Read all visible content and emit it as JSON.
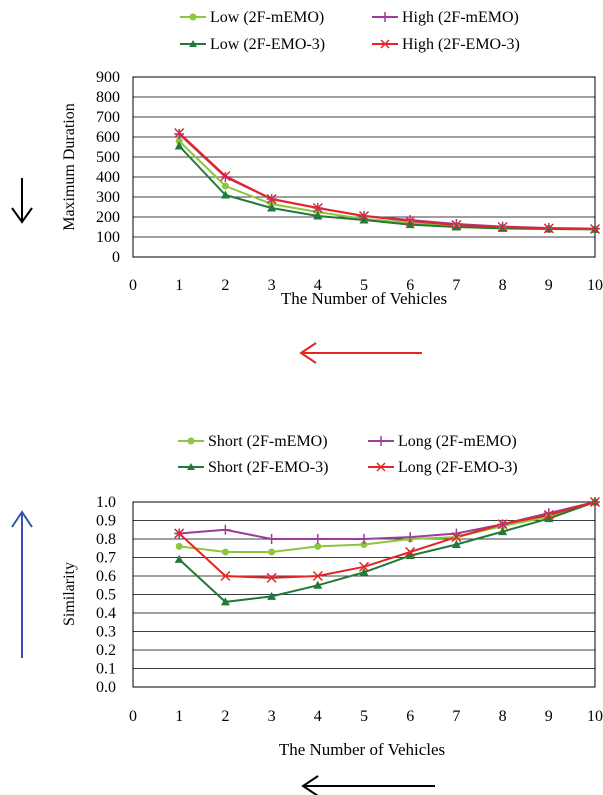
{
  "chart_data": [
    {
      "type": "line",
      "xlabel": "The Number of Vehicles",
      "ylabel": "Maximum Duration",
      "xlim": [
        0,
        10
      ],
      "ylim": [
        0,
        900
      ],
      "x_ticks": [
        0,
        1,
        2,
        3,
        4,
        5,
        6,
        7,
        8,
        9,
        10
      ],
      "y_ticks": [
        0,
        100,
        200,
        300,
        400,
        500,
        600,
        700,
        800,
        900
      ],
      "grid": "horizontal",
      "legend_position": "top",
      "arrows": [
        {
          "direction": "down",
          "color": "#000000"
        },
        {
          "direction": "left",
          "color": "#e52525"
        }
      ],
      "x": [
        1,
        2,
        3,
        4,
        5,
        6,
        7,
        8,
        9,
        10
      ],
      "series": [
        {
          "name": "Low (2F-mEMO)",
          "color": "#8cc63f",
          "marker": "circle",
          "values": [
            580,
            355,
            265,
            225,
            190,
            170,
            155,
            148,
            143,
            140
          ]
        },
        {
          "name": "High (2F-mEMO)",
          "color": "#9b3d9b",
          "marker": "plus",
          "values": [
            615,
            400,
            290,
            245,
            205,
            185,
            165,
            152,
            145,
            142
          ]
        },
        {
          "name": "Low (2F-EMO-3)",
          "color": "#217a3a",
          "marker": "triangle",
          "values": [
            555,
            310,
            245,
            205,
            185,
            162,
            150,
            143,
            140,
            138
          ]
        },
        {
          "name": "High (2F-EMO-3)",
          "color": "#e52525",
          "marker": "x",
          "values": [
            620,
            405,
            290,
            245,
            205,
            180,
            160,
            150,
            143,
            140
          ]
        }
      ]
    },
    {
      "type": "line",
      "xlabel": "The Number of Vehicles",
      "ylabel": "Similarity",
      "xlim": [
        0,
        10
      ],
      "ylim": [
        0,
        1
      ],
      "x_ticks": [
        0,
        1,
        2,
        3,
        4,
        5,
        6,
        7,
        8,
        9,
        10
      ],
      "y_ticks": [
        "0.0",
        "0.1",
        "0.2",
        "0.3",
        "0.4",
        "0.5",
        "0.6",
        "0.7",
        "0.8",
        "0.9",
        "1.0"
      ],
      "grid": "horizontal",
      "legend_position": "top",
      "arrows": [
        {
          "direction": "up",
          "color": "#3355aa"
        },
        {
          "direction": "left",
          "color": "#000000"
        }
      ],
      "x": [
        1,
        2,
        3,
        4,
        5,
        6,
        7,
        8,
        9,
        10
      ],
      "series": [
        {
          "name": "Short (2F-mEMO)",
          "color": "#8cc63f",
          "marker": "circle",
          "values": [
            0.76,
            0.73,
            0.73,
            0.76,
            0.77,
            0.8,
            0.81,
            0.87,
            0.92,
            1.0
          ]
        },
        {
          "name": "Long (2F-mEMO)",
          "color": "#9b3d9b",
          "marker": "plus",
          "values": [
            0.83,
            0.85,
            0.8,
            0.8,
            0.8,
            0.81,
            0.83,
            0.88,
            0.94,
            1.0
          ]
        },
        {
          "name": "Short (2F-EMO-3)",
          "color": "#217a3a",
          "marker": "triangle",
          "values": [
            0.69,
            0.46,
            0.49,
            0.55,
            0.62,
            0.71,
            0.77,
            0.84,
            0.91,
            1.0
          ]
        },
        {
          "name": "Long (2F-EMO-3)",
          "color": "#e52525",
          "marker": "x",
          "values": [
            0.83,
            0.6,
            0.59,
            0.6,
            0.65,
            0.73,
            0.81,
            0.88,
            0.93,
            1.0
          ]
        }
      ]
    }
  ]
}
